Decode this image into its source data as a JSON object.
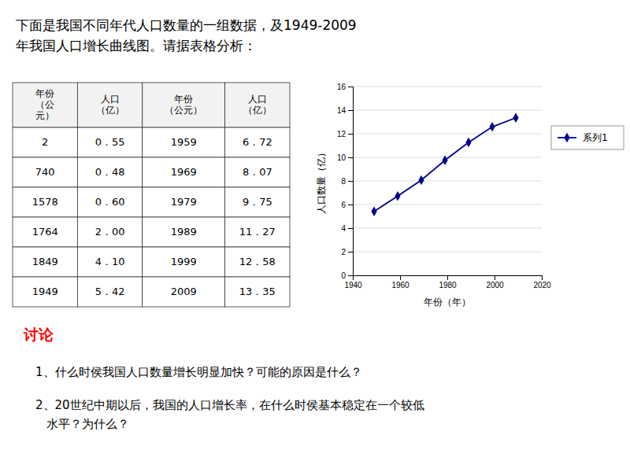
{
  "chart_data": {
    "type": "line",
    "title": "下面是我国不同年代人口数量的一组数据，及1949-2009\n年我国人口增长曲线图。请据表格分析：",
    "x": [
      1949,
      1959,
      1969,
      1979,
      1989,
      1999,
      2009
    ],
    "series": [
      {
        "name": "系列1",
        "color": "#00008B",
        "marker": "diamond",
        "line_style": "solid",
        "values": [
          5.42,
          6.72,
          8.07,
          9.75,
          11.27,
          12.58,
          13.35
        ]
      }
    ],
    "xlabel": "年份（年）",
    "ylabel": "人口数量（亿）",
    "xlim": [
      1940,
      2020
    ],
    "ylim": [
      0,
      16
    ],
    "xticks": [
      1940,
      1960,
      1980,
      2000,
      2020
    ],
    "yticks": [
      0,
      2,
      4,
      6,
      8,
      10,
      12,
      14,
      16
    ],
    "grid": "y",
    "legend": "right"
  },
  "table": {
    "headers": [
      "年份\n（公\n元）",
      "人口\n（亿）",
      "年份\n（公元）",
      "人口\n（亿）"
    ],
    "rows": [
      [
        "2",
        "0．55",
        "1959",
        "6．72"
      ],
      [
        "740",
        "0．48",
        "1969",
        "8．07"
      ],
      [
        "1578",
        "0．60",
        "1979",
        "9．75"
      ],
      [
        "1764",
        "2．00",
        "1989",
        "11．27"
      ],
      [
        "1849",
        "4．10",
        "1999",
        "12．58"
      ],
      [
        "1949",
        "5．42",
        "2009",
        "13．35"
      ]
    ]
  },
  "discussion": {
    "title": "讨论",
    "color": "#FF0000",
    "questions": [
      "1、什么时侯我国人口数量增长明显加快？可能的原因是什么？",
      "2、20世纪中期以后，我国的人口增长率，在什么时侯基本稳定在一个较低\n   水平？为什么？"
    ]
  }
}
